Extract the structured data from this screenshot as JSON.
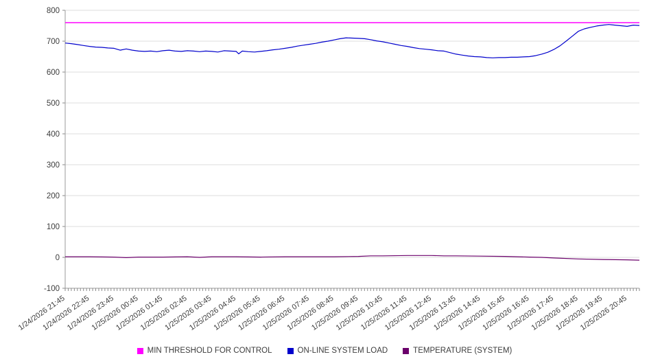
{
  "chart_data": {
    "type": "line",
    "title": "",
    "xlabel": "",
    "ylabel": "",
    "xlim": [
      0,
      23.5
    ],
    "ylim": [
      -100,
      800
    ],
    "grid": "horizontal",
    "legend_position": "bottom",
    "y_ticks": [
      800,
      700,
      600,
      500,
      400,
      300,
      200,
      100,
      0,
      -100
    ],
    "x_tick_hours": [
      0,
      1,
      2,
      3,
      4,
      5,
      6,
      7,
      8,
      9,
      10,
      11,
      12,
      13,
      14,
      15,
      16,
      17,
      18,
      19,
      20,
      21,
      22,
      23
    ],
    "x_tick_labels": [
      "1/24/2026 21:45",
      "1/24/2026 22:45",
      "1/24/2026 23:45",
      "1/25/2026 00:45",
      "1/25/2026 01:45",
      "1/25/2026 02:45",
      "1/25/2026 03:45",
      "1/25/2026 04:45",
      "1/25/2026 05:45",
      "1/25/2026 06:45",
      "1/25/2026 07:45",
      "1/25/2026 08:45",
      "1/25/2026 09:45",
      "1/25/2026 10:45",
      "1/25/2026 11:45",
      "1/25/2026 12:45",
      "1/25/2026 13:45",
      "1/25/2026 14:45",
      "1/25/2026 15:45",
      "1/25/2026 16:45",
      "1/25/2026 17:45",
      "1/25/2026 18:45",
      "1/25/2026 19:45",
      "1/25/2026 20:45"
    ],
    "series": [
      {
        "name": "MIN THRESHOLD FOR CONTROL",
        "color": "#ff00ff",
        "width": 1.6,
        "points": [
          [
            0,
            760
          ],
          [
            23.5,
            760
          ]
        ]
      },
      {
        "name": "ON-LINE SYSTEM LOAD",
        "color": "#0000cc",
        "width": 1.2,
        "points": [
          [
            0,
            694
          ],
          [
            0.25,
            692
          ],
          [
            0.5,
            689
          ],
          [
            0.75,
            686
          ],
          [
            1,
            683
          ],
          [
            1.25,
            681
          ],
          [
            1.5,
            680
          ],
          [
            1.75,
            678
          ],
          [
            2,
            677
          ],
          [
            2.25,
            671
          ],
          [
            2.5,
            675
          ],
          [
            2.75,
            671
          ],
          [
            3,
            668
          ],
          [
            3.25,
            667
          ],
          [
            3.5,
            668
          ],
          [
            3.75,
            666
          ],
          [
            4,
            669
          ],
          [
            4.25,
            671
          ],
          [
            4.5,
            668
          ],
          [
            4.75,
            667
          ],
          [
            5,
            669
          ],
          [
            5.25,
            668
          ],
          [
            5.5,
            666
          ],
          [
            5.75,
            668
          ],
          [
            6,
            667
          ],
          [
            6.25,
            665
          ],
          [
            6.5,
            669
          ],
          [
            6.75,
            668
          ],
          [
            7,
            667
          ],
          [
            7.1,
            659
          ],
          [
            7.25,
            668
          ],
          [
            7.5,
            666
          ],
          [
            7.75,
            665
          ],
          [
            8,
            667
          ],
          [
            8.25,
            669
          ],
          [
            8.5,
            672
          ],
          [
            8.75,
            674
          ],
          [
            9,
            677
          ],
          [
            9.25,
            680
          ],
          [
            9.5,
            684
          ],
          [
            9.75,
            687
          ],
          [
            10,
            690
          ],
          [
            10.25,
            693
          ],
          [
            10.5,
            697
          ],
          [
            10.75,
            700
          ],
          [
            11,
            704
          ],
          [
            11.25,
            708
          ],
          [
            11.5,
            711
          ],
          [
            11.75,
            710
          ],
          [
            12,
            709
          ],
          [
            12.25,
            708
          ],
          [
            12.5,
            705
          ],
          [
            12.75,
            701
          ],
          [
            13,
            698
          ],
          [
            13.25,
            694
          ],
          [
            13.5,
            690
          ],
          [
            13.75,
            686
          ],
          [
            14,
            683
          ],
          [
            14.25,
            679
          ],
          [
            14.5,
            676
          ],
          [
            14.75,
            674
          ],
          [
            15,
            672
          ],
          [
            15.25,
            669
          ],
          [
            15.5,
            668
          ],
          [
            15.75,
            663
          ],
          [
            16,
            658
          ],
          [
            16.25,
            655
          ],
          [
            16.5,
            652
          ],
          [
            16.75,
            650
          ],
          [
            17,
            649
          ],
          [
            17.25,
            647
          ],
          [
            17.5,
            646
          ],
          [
            17.75,
            647
          ],
          [
            18,
            647
          ],
          [
            18.25,
            648
          ],
          [
            18.5,
            648
          ],
          [
            18.75,
            649
          ],
          [
            19,
            650
          ],
          [
            19.25,
            653
          ],
          [
            19.5,
            658
          ],
          [
            19.75,
            664
          ],
          [
            20,
            673
          ],
          [
            20.25,
            685
          ],
          [
            20.5,
            700
          ],
          [
            20.75,
            716
          ],
          [
            21,
            732
          ],
          [
            21.25,
            740
          ],
          [
            21.5,
            745
          ],
          [
            21.75,
            749
          ],
          [
            22,
            752
          ],
          [
            22.25,
            754
          ],
          [
            22.5,
            752
          ],
          [
            22.75,
            750
          ],
          [
            23,
            748
          ],
          [
            23.25,
            752
          ],
          [
            23.5,
            751
          ]
        ]
      },
      {
        "name": "TEMPERATURE (SYSTEM)",
        "color": "#6b006b",
        "width": 1.2,
        "points": [
          [
            0,
            2
          ],
          [
            1,
            2
          ],
          [
            2,
            1
          ],
          [
            2.5,
            -1
          ],
          [
            3,
            1
          ],
          [
            4,
            1
          ],
          [
            5,
            2
          ],
          [
            5.5,
            0
          ],
          [
            6,
            2
          ],
          [
            7,
            2
          ],
          [
            8,
            1
          ],
          [
            9,
            2
          ],
          [
            10,
            2
          ],
          [
            11,
            2
          ],
          [
            12,
            3
          ],
          [
            12.5,
            5
          ],
          [
            13,
            5
          ],
          [
            14,
            6
          ],
          [
            15,
            6
          ],
          [
            15.5,
            5
          ],
          [
            16,
            5
          ],
          [
            17,
            4
          ],
          [
            18,
            3
          ],
          [
            19,
            1
          ],
          [
            19.5,
            0
          ],
          [
            20,
            -2
          ],
          [
            21,
            -5
          ],
          [
            22,
            -7
          ],
          [
            23,
            -8
          ],
          [
            23.5,
            -9
          ]
        ]
      }
    ]
  },
  "axis": {
    "grid_color": "#dedede",
    "axis_color": "#9a9a9a",
    "tick_color": "#8a8a8a",
    "label_color": "#3c3c3c"
  },
  "legend": {
    "items": [
      {
        "label": "MIN THRESHOLD FOR CONTROL",
        "color": "#ff00ff"
      },
      {
        "label": "ON-LINE SYSTEM LOAD",
        "color": "#0000cc"
      },
      {
        "label": "TEMPERATURE (SYSTEM)",
        "color": "#6b006b"
      }
    ]
  }
}
